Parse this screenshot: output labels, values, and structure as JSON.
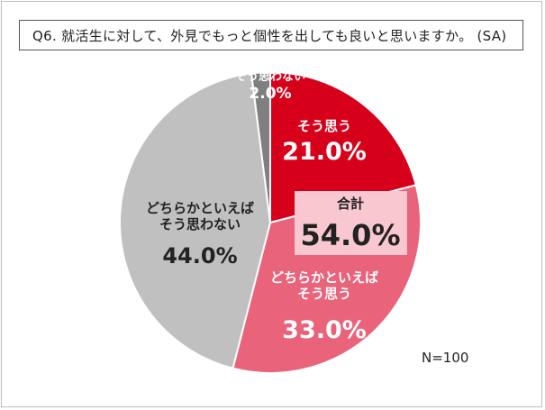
{
  "title": "Q6. 就活生に対して、外見でもっと個性を出しても良いと思いますか。 (SA)",
  "n_label": "N=100",
  "colors": {
    "agree": "#d7001a",
    "somewhat_agree": "#e9637b",
    "somewhat_disagree": "#c0c0c0",
    "disagree": "#7f7f7f",
    "total_box": "#f8c7cf"
  },
  "chart_data": {
    "type": "pie",
    "title": "Q6. 就活生に対して、外見でもっと個性を出しても良いと思いますか。 (SA)",
    "start": "12 o'clock",
    "direction": "clockwise",
    "slices": [
      {
        "label": "そう思う",
        "label_lines": [
          "そう思う"
        ],
        "value": 21.0,
        "display": "21.0%",
        "color_key": "agree"
      },
      {
        "label": "どちらかといえばそう思う",
        "label_lines": [
          "どちらかといえば",
          "そう思う"
        ],
        "value": 33.0,
        "display": "33.0%",
        "color_key": "somewhat_agree"
      },
      {
        "label": "どちらかといえばそう思わない",
        "label_lines": [
          "どちらかといえば",
          "そう思わない"
        ],
        "value": 44.0,
        "display": "44.0%",
        "color_key": "somewhat_disagree"
      },
      {
        "label": "そう思わない",
        "label_lines": [
          "そう思わない"
        ],
        "value": 2.0,
        "display": "2.0%",
        "color_key": "disagree"
      }
    ],
    "total": {
      "label": "合計",
      "value": 54.0,
      "display": "54.0%"
    },
    "annotation": "N=100"
  }
}
